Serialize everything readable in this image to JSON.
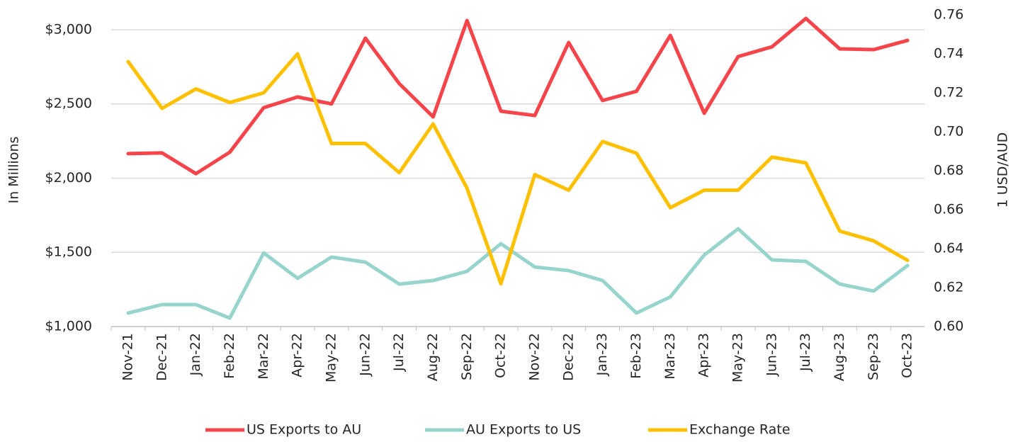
{
  "chart_data": {
    "type": "line",
    "categories": [
      "Nov-21",
      "Dec-21",
      "Jan-22",
      "Feb-22",
      "Mar-22",
      "Apr-22",
      "May-22",
      "Jun-22",
      "Jul-22",
      "Aug-22",
      "Sep-22",
      "Oct-22",
      "Nov-22",
      "Dec-22",
      "Jan-23",
      "Feb-23",
      "Mar-23",
      "Apr-23",
      "May-23",
      "Jun-23",
      "Jul-23",
      "Aug-23",
      "Sep-23",
      "Oct-23"
    ],
    "y_label": "In Millions",
    "y2_label": "1 USD/AUD",
    "ylim": [
      1000,
      3100
    ],
    "yticks": [
      {
        "value": 1000,
        "label": "$1,000"
      },
      {
        "value": 1500,
        "label": "$1,500"
      },
      {
        "value": 2000,
        "label": "$2,000"
      },
      {
        "value": 2500,
        "label": "$2,500"
      },
      {
        "value": 3000,
        "label": "$3,000"
      }
    ],
    "y2lim": [
      0.6,
      0.76
    ],
    "y2ticks": [
      {
        "value": 0.6,
        "label": "0.60"
      },
      {
        "value": 0.62,
        "label": "0.62"
      },
      {
        "value": 0.64,
        "label": "0.64"
      },
      {
        "value": 0.66,
        "label": "0.66"
      },
      {
        "value": 0.68,
        "label": "0.68"
      },
      {
        "value": 0.7,
        "label": "0.70"
      },
      {
        "value": 0.72,
        "label": "0.72"
      },
      {
        "value": 0.74,
        "label": "0.74"
      },
      {
        "value": 0.76,
        "label": "0.76"
      }
    ],
    "grid": true,
    "legend": "bottom",
    "series": [
      {
        "name": "US Exports to AU",
        "color": "#f5454a",
        "values": [
          2165,
          2170,
          2030,
          2175,
          2475,
          2547,
          2500,
          2943,
          2637,
          2413,
          3062,
          2451,
          2422,
          2914,
          2523,
          2585,
          2962,
          2437,
          2819,
          2885,
          3076,
          2871,
          2866,
          2928
        ]
      },
      {
        "name": "AU Exports to US",
        "color": "#97d5cc",
        "values": [
          1091,
          1148,
          1148,
          1057,
          1496,
          1325,
          1468,
          1434,
          1286,
          1310,
          1372,
          1558,
          1401,
          1377,
          1310,
          1091,
          1200,
          1482,
          1659,
          1449,
          1439,
          1286,
          1239,
          1411
        ]
      },
      {
        "name": "Exchange Rate",
        "color": "#ffc000",
        "axis": "y2",
        "values": [
          0.736,
          0.712,
          0.722,
          0.715,
          0.72,
          0.74,
          0.694,
          0.694,
          0.679,
          0.704,
          0.671,
          0.622,
          0.678,
          0.67,
          0.695,
          0.689,
          0.661,
          0.67,
          0.67,
          0.687,
          0.684,
          0.649,
          0.644,
          0.634
        ]
      }
    ]
  }
}
